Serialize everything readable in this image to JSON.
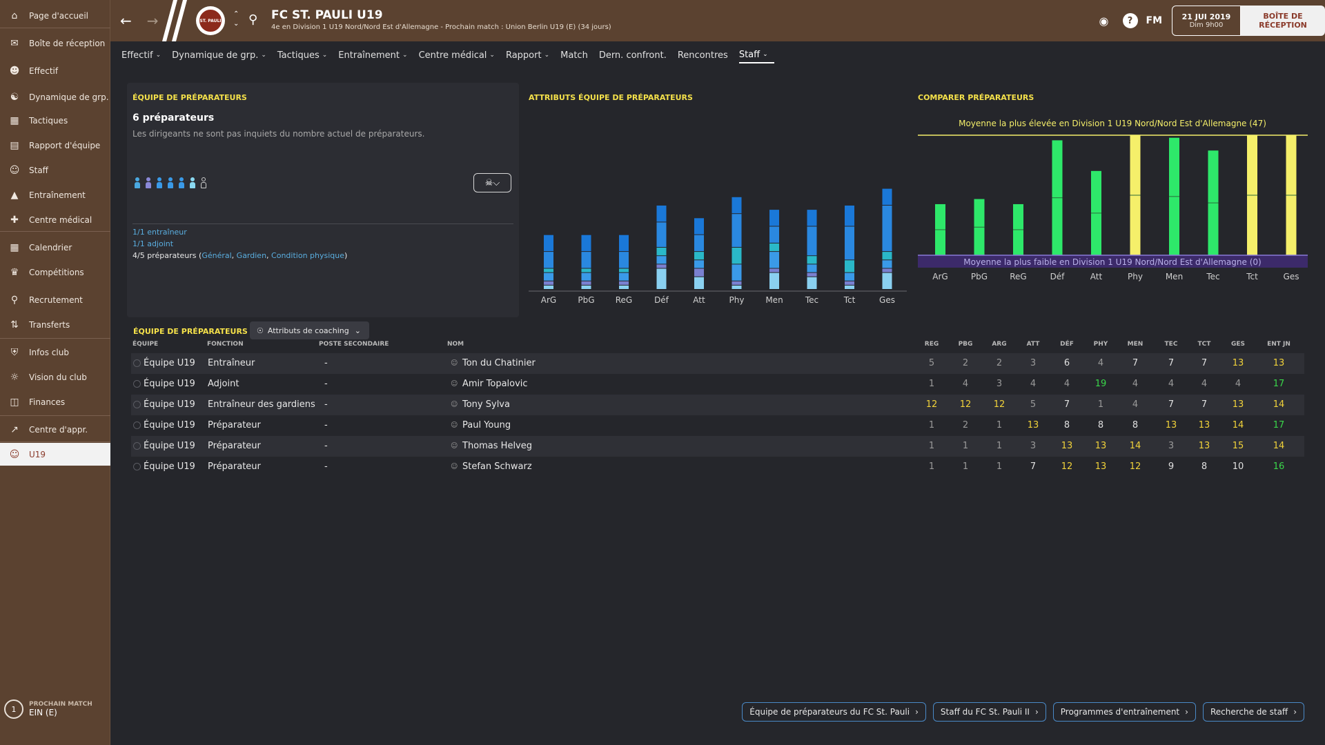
{
  "sidebar": {
    "items": [
      {
        "label": "Page d'accueil",
        "icon": "home-icon"
      },
      {
        "label": "Boîte de réception",
        "icon": "inbox-icon"
      },
      {
        "label": "Effectif",
        "icon": "squad-icon"
      },
      {
        "label": "Dynamique de grp.",
        "icon": "dynamics-icon"
      },
      {
        "label": "Tactiques",
        "icon": "tactics-icon"
      },
      {
        "label": "Rapport d'équipe",
        "icon": "report-icon"
      },
      {
        "label": "Staff",
        "icon": "staff-icon"
      },
      {
        "label": "Entraînement",
        "icon": "training-icon"
      },
      {
        "label": "Centre médical",
        "icon": "medical-icon"
      },
      {
        "label": "Calendrier",
        "icon": "calendar-icon"
      },
      {
        "label": "Compétitions",
        "icon": "trophy-icon"
      },
      {
        "label": "Recrutement",
        "icon": "scouting-icon"
      },
      {
        "label": "Transferts",
        "icon": "transfers-icon"
      },
      {
        "label": "Infos club",
        "icon": "shield-icon"
      },
      {
        "label": "Vision du club",
        "icon": "vision-icon"
      },
      {
        "label": "Finances",
        "icon": "finances-icon"
      },
      {
        "label": "Centre d'appr.",
        "icon": "academy-icon"
      },
      {
        "label": "U19",
        "icon": "u19-icon"
      }
    ],
    "next_match_label": "PROCHAIN MATCH",
    "next_match_value": "EIN (E)",
    "next_match_circle": "1"
  },
  "header": {
    "club_title": "FC ST. PAULI U19",
    "club_subtitle": "4e en Division 1 U19 Nord/Nord Est d'Allemagne - Prochain match : Union Berlin U19 (E) (34 jours)",
    "fm_logo": "FM",
    "date": "21 JUI 2019",
    "time": "Dim 9h00",
    "inbox_button": "BOÎTE DE RÉCEPTION",
    "crest_text": "ST. PAULI"
  },
  "tabs": [
    {
      "label": "Effectif",
      "dropdown": true
    },
    {
      "label": "Dynamique de grp.",
      "dropdown": true
    },
    {
      "label": "Tactiques",
      "dropdown": true
    },
    {
      "label": "Entraînement",
      "dropdown": true
    },
    {
      "label": "Centre médical",
      "dropdown": true
    },
    {
      "label": "Rapport",
      "dropdown": true
    },
    {
      "label": "Match",
      "dropdown": false
    },
    {
      "label": "Dern. confront.",
      "dropdown": false
    },
    {
      "label": "Rencontres",
      "dropdown": false
    },
    {
      "label": "Staff",
      "dropdown": true,
      "active": true
    }
  ],
  "panel_left": {
    "title": "ÉQUIPE DE PRÉPARATEURS",
    "count": "6 préparateurs",
    "description": "Les dirigeants ne sont pas inquiets du nombre actuel de préparateurs.",
    "figures": [
      "#4aa8e0",
      "#8a88d8",
      "#3a9ae8",
      "#3a9ae8",
      "#3a9ae8",
      "#8ad8f0",
      "empty"
    ],
    "roles": {
      "coach": "1/1 entraîneur",
      "assistant": "1/1 adjoint",
      "trainers_prefix": "4/5 préparateurs (",
      "trainers_link1": "Général",
      "trainers_sep1": ", ",
      "trainers_link2": "Gardien",
      "trainers_sep2": ", ",
      "trainers_link3": "Condition physique",
      "trainers_suffix": ")"
    }
  },
  "panel_middle": {
    "title": "ATTRIBUTS ÉQUIPE DE PRÉPARATEURS"
  },
  "panel_right": {
    "title": "COMPARER PRÉPARATEURS",
    "high_label": "Moyenne la plus élevée en Division 1 U19 Nord/Nord Est d'Allemagne (47)",
    "low_label": "Moyenne la plus faible en Division 1 U19 Nord/Nord Est d'Allemagne (0)"
  },
  "chart_data": [
    {
      "type": "bar",
      "title": "ATTRIBUTS ÉQUIPE DE PRÉPARATEURS",
      "stacked": true,
      "categories": [
        "ArG",
        "PbG",
        "ReG",
        "Déf",
        "Att",
        "Phy",
        "Men",
        "Tec",
        "Tct",
        "Ges"
      ],
      "series": [
        {
          "color": "#8ad0f0",
          "values": [
            1,
            1,
            1,
            5,
            3,
            1,
            4,
            3,
            1,
            4
          ]
        },
        {
          "color": "#7a80d0",
          "values": [
            1,
            1,
            1,
            1,
            2,
            1,
            1,
            1,
            1,
            1
          ]
        },
        {
          "color": "#3a9ae8",
          "values": [
            2,
            2,
            2,
            2,
            2,
            4,
            4,
            2,
            2,
            2
          ]
        },
        {
          "color": "#2ab8c8",
          "values": [
            1,
            1,
            1,
            2,
            2,
            4,
            2,
            2,
            3,
            2
          ]
        },
        {
          "color": "#2a88e0",
          "values": [
            4,
            4,
            4,
            6,
            4,
            8,
            4,
            7,
            8,
            11
          ]
        },
        {
          "color": "#1a78d8",
          "values": [
            4,
            4,
            4,
            4,
            4,
            4,
            4,
            4,
            5,
            4
          ]
        }
      ]
    },
    {
      "type": "bar",
      "title": "COMPARER PRÉPARATEURS",
      "categories": [
        "ArG",
        "PbG",
        "ReG",
        "Déf",
        "Att",
        "Phy",
        "Men",
        "Tec",
        "Tct",
        "Ges"
      ],
      "values": [
        20,
        22,
        20,
        45,
        33,
        47,
        46,
        41,
        47,
        47
      ],
      "colors": [
        "#2ee86a",
        "#2ee86a",
        "#2ee86a",
        "#2ee86a",
        "#2ee86a",
        "#f5ef6a",
        "#2ee86a",
        "#2ee86a",
        "#f5ef6a",
        "#f5ef6a"
      ],
      "ylim": [
        0,
        47
      ]
    }
  ],
  "table": {
    "title": "ÉQUIPE DE PRÉPARATEURS",
    "view_dropdown": "Attributs de coaching",
    "headers": {
      "team": "ÉQUIPE",
      "function": "FONCTION",
      "secondary": "POSTE SECONDAIRE",
      "name": "NOM",
      "reg": "REG",
      "pbg": "PBG",
      "arg": "ARG",
      "att": "ATT",
      "def": "DÉF",
      "phy": "PHY",
      "men": "MEN",
      "tec": "TEC",
      "tct": "TCT",
      "ges": "GES",
      "entjn": "ENT JN"
    },
    "rows": [
      {
        "team": "Équipe U19",
        "function": "Entraîneur",
        "secondary": "-",
        "name": "Ton du Chatinier",
        "vals": [
          5,
          2,
          2,
          3,
          6,
          4,
          7,
          7,
          7,
          13,
          13
        ]
      },
      {
        "team": "Équipe U19",
        "function": "Adjoint",
        "secondary": "-",
        "name": "Amir Topalovic",
        "vals": [
          1,
          4,
          3,
          4,
          4,
          19,
          4,
          4,
          4,
          4,
          17
        ]
      },
      {
        "team": "Équipe U19",
        "function": "Entraîneur des gardiens",
        "secondary": "-",
        "name": "Tony Sylva",
        "vals": [
          12,
          12,
          12,
          5,
          7,
          1,
          4,
          7,
          7,
          13,
          14
        ]
      },
      {
        "team": "Équipe U19",
        "function": "Préparateur",
        "secondary": "-",
        "name": "Paul Young",
        "vals": [
          1,
          2,
          1,
          13,
          8,
          8,
          8,
          13,
          13,
          14,
          17
        ]
      },
      {
        "team": "Équipe U19",
        "function": "Préparateur",
        "secondary": "-",
        "name": "Thomas Helveg",
        "vals": [
          1,
          1,
          1,
          3,
          13,
          13,
          14,
          3,
          13,
          15,
          14
        ]
      },
      {
        "team": "Équipe U19",
        "function": "Préparateur",
        "secondary": "-",
        "name": "Stefan Schwarz",
        "vals": [
          1,
          1,
          1,
          7,
          12,
          13,
          12,
          9,
          8,
          10,
          16
        ]
      }
    ]
  },
  "bottom_buttons": [
    "Équipe de préparateurs du FC St. Pauli",
    "Staff du FC St. Pauli II",
    "Programmes d'entraînement",
    "Recherche de staff"
  ]
}
